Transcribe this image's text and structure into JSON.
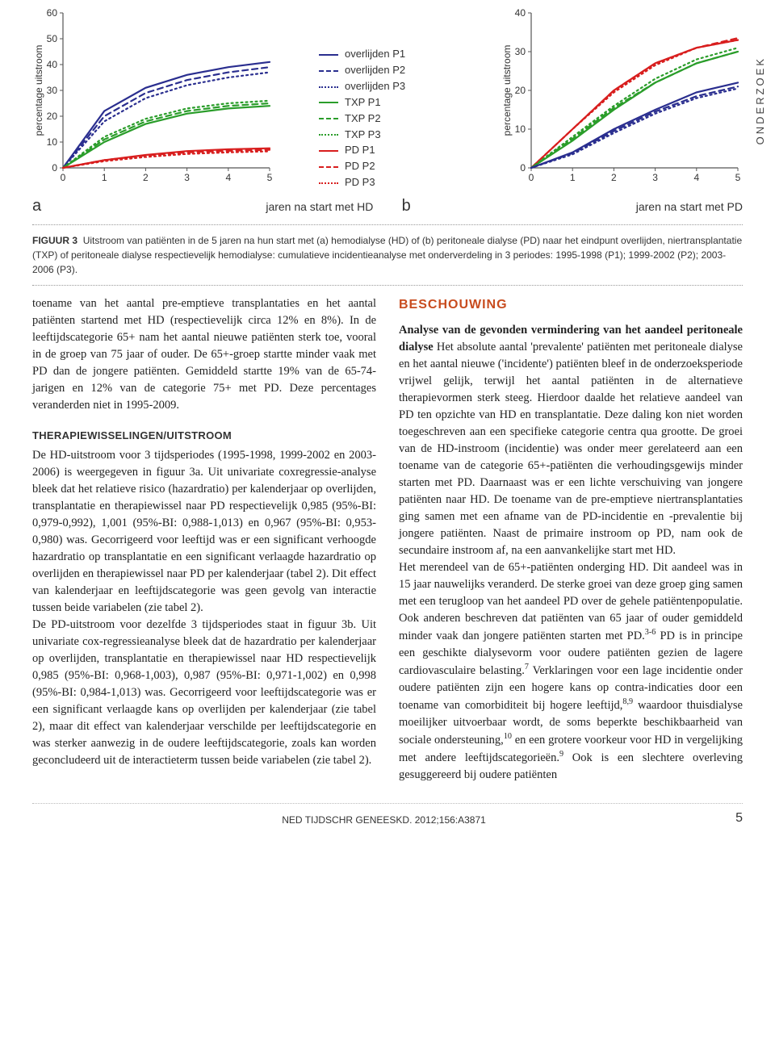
{
  "side_label": "ONDERZOEK",
  "legend": {
    "items": [
      {
        "label": "overlijden P1",
        "color": "#2a2e8f",
        "dash": "solid"
      },
      {
        "label": "overlijden P2",
        "color": "#2a2e8f",
        "dash": "dashed"
      },
      {
        "label": "overlijden P3",
        "color": "#2a2e8f",
        "dash": "dotted"
      },
      {
        "label": "TXP P1",
        "color": "#2a9d2a",
        "dash": "solid"
      },
      {
        "label": "TXP P2",
        "color": "#2a9d2a",
        "dash": "dashed"
      },
      {
        "label": "TXP P3",
        "color": "#2a9d2a",
        "dash": "dotted"
      },
      {
        "label": "PD P1",
        "color": "#d81e1e",
        "dash": "solid"
      },
      {
        "label": "PD P2",
        "color": "#d81e1e",
        "dash": "dashed"
      },
      {
        "label": "PD P3",
        "color": "#d81e1e",
        "dash": "dotted"
      }
    ]
  },
  "chartA": {
    "type": "line",
    "ylabel": "percentage uitstroom",
    "panel_letter": "a",
    "x_caption": "jaren na start met HD",
    "xlim": [
      0,
      5
    ],
    "ylim": [
      0,
      60
    ],
    "xticks": [
      0,
      1,
      2,
      3,
      4,
      5
    ],
    "yticks": [
      0,
      10,
      20,
      30,
      40,
      50,
      60
    ],
    "background_color": "#ffffff",
    "axis_color": "#555555",
    "label_fontsize": 12,
    "series": [
      {
        "name": "overlijden P1",
        "color": "#2a2e8f",
        "dash": "solid",
        "width": 2.2,
        "y": [
          0,
          22,
          31,
          36,
          39,
          41
        ]
      },
      {
        "name": "overlijden P2",
        "color": "#2a2e8f",
        "dash": "dashed",
        "width": 2.2,
        "y": [
          0,
          20,
          29,
          34,
          37,
          39
        ]
      },
      {
        "name": "overlijden P3",
        "color": "#2a2e8f",
        "dash": "dotted",
        "width": 2.2,
        "y": [
          0,
          18,
          27,
          32,
          35,
          37
        ]
      },
      {
        "name": "TXP P1",
        "color": "#2a9d2a",
        "dash": "solid",
        "width": 2.2,
        "y": [
          0,
          10,
          17,
          21,
          23,
          24
        ]
      },
      {
        "name": "TXP P2",
        "color": "#2a9d2a",
        "dash": "dashed",
        "width": 2.2,
        "y": [
          0,
          11,
          18,
          22,
          24,
          25
        ]
      },
      {
        "name": "TXP P3",
        "color": "#2a9d2a",
        "dash": "dotted",
        "width": 2.2,
        "y": [
          0,
          12,
          19,
          23,
          25,
          26
        ]
      },
      {
        "name": "PD P1",
        "color": "#d81e1e",
        "dash": "solid",
        "width": 2.2,
        "y": [
          0,
          3,
          5,
          6.5,
          7.2,
          7.6
        ]
      },
      {
        "name": "PD P2",
        "color": "#d81e1e",
        "dash": "dashed",
        "width": 2.2,
        "y": [
          0,
          3,
          4.8,
          6,
          6.6,
          7
        ]
      },
      {
        "name": "PD P3",
        "color": "#d81e1e",
        "dash": "dotted",
        "width": 2.2,
        "y": [
          0,
          2.6,
          4.2,
          5.4,
          6,
          6.4
        ]
      }
    ]
  },
  "chartB": {
    "type": "line",
    "ylabel": "percentage uitstroom",
    "panel_letter": "b",
    "x_caption": "jaren na start met PD",
    "xlim": [
      0,
      5
    ],
    "ylim": [
      0,
      40
    ],
    "xticks": [
      0,
      1,
      2,
      3,
      4,
      5
    ],
    "yticks": [
      0,
      10,
      20,
      30,
      40
    ],
    "background_color": "#ffffff",
    "axis_color": "#555555",
    "label_fontsize": 12,
    "series": [
      {
        "name": "PD P1",
        "color": "#d81e1e",
        "dash": "solid",
        "width": 2.2,
        "y": [
          0,
          10,
          20,
          27,
          31,
          33
        ]
      },
      {
        "name": "PD P2",
        "color": "#d81e1e",
        "dash": "dashed",
        "width": 2.2,
        "y": [
          0,
          10,
          20,
          27,
          31,
          33.5
        ]
      },
      {
        "name": "PD P3",
        "color": "#d81e1e",
        "dash": "dotted",
        "width": 2.2,
        "y": [
          0,
          10,
          19.5,
          26.5,
          31,
          33
        ]
      },
      {
        "name": "TXP P1",
        "color": "#2a9d2a",
        "dash": "solid",
        "width": 2.2,
        "y": [
          0,
          7,
          15,
          22,
          27,
          30
        ]
      },
      {
        "name": "TXP P2",
        "color": "#2a9d2a",
        "dash": "dashed",
        "width": 2.2,
        "y": [
          0,
          7.5,
          15.5,
          22,
          27,
          30
        ]
      },
      {
        "name": "TXP P3",
        "color": "#2a9d2a",
        "dash": "dotted",
        "width": 2.2,
        "y": [
          0,
          8,
          16,
          23,
          28,
          31
        ]
      },
      {
        "name": "overlijden P1",
        "color": "#2a2e8f",
        "dash": "solid",
        "width": 2.2,
        "y": [
          0,
          4,
          10,
          15,
          19.5,
          22
        ]
      },
      {
        "name": "overlijden P2",
        "color": "#2a2e8f",
        "dash": "dashed",
        "width": 2.2,
        "y": [
          0,
          3.8,
          9.5,
          14.5,
          18.5,
          21
        ]
      },
      {
        "name": "overlijden P3",
        "color": "#2a2e8f",
        "dash": "dotted",
        "width": 2.2,
        "y": [
          0,
          3.5,
          9,
          14,
          18,
          20.5
        ]
      }
    ]
  },
  "figure": {
    "label": "FIGUUR 3",
    "caption": "Uitstroom van patiënten in de 5 jaren na hun start met (a) hemodialyse (HD) of (b) peritoneale dialyse (PD) naar het eindpunt overlijden, niertransplantatie (TXP) of peritoneale dialyse respectievelijk hemodialyse: cumulatieve incidentieanalyse met onderverdeling in 3 periodes: 1995-1998 (P1); 1999-2002 (P2); 2003-2006 (P3)."
  },
  "body": {
    "para1": "toename van het aantal pre-emptieve transplantaties en het aantal patiënten startend met HD (respectievelijk circa 12% en 8%). In de leeftijdscategorie 65+ nam het aantal nieuwe patiënten sterk toe, vooral in de groep van 75 jaar of ouder. De 65+-groep startte minder vaak met PD dan de jongere patiënten. Gemiddeld startte 19% van de 65-74-jarigen en 12% van de categorie 75+ met PD. Deze percentages veranderden niet in 1995-2009.",
    "heading1": "THERAPIEWISSELINGEN/UITSTROOM",
    "para2": "De HD-uitstroom voor 3 tijdsperiodes (1995-1998, 1999-2002 en 2003-2006) is weergegeven in figuur 3a. Uit univariate coxregressie-analyse bleek dat het relatieve risico (hazardratio) per kalenderjaar op overlijden, transplantatie en therapiewissel naar PD respectievelijk 0,985 (95%-BI: 0,979-0,992), 1,001 (95%-BI: 0,988-1,013) en 0,967 (95%-BI: 0,953-0,980) was. Gecorrigeerd voor leeftijd was er een significant verhoogde hazardratio op transplantatie en een significant verlaagde hazardratio op overlijden en therapiewissel naar PD per kalenderjaar (tabel 2). Dit effect van kalenderjaar en leeftijdscategorie was geen gevolg van interactie tussen beide variabelen (zie tabel 2).",
    "para3": "De PD-uitstroom voor dezelfde 3 tijdsperiodes staat in figuur 3b. Uit univariate cox-regressieanalyse bleek dat de hazardratio per kalenderjaar op overlijden, transplantatie en therapiewissel naar HD respectievelijk 0,985 (95%-BI: 0,968-1,003), 0,987 (95%-BI: 0,971-1,002) en 0,998 (95%-BI: 0,984-1,013) was. Gecorrigeerd voor leeftijdscategorie was er een significant verlaagde kans op overlijden per kalenderjaar (zie tabel 2), maar dit effect van kalenderjaar verschilde per leeftijdscategorie en was sterker aanwezig in de oudere leeftijdscategorie, zoals kan worden geconcludeerd uit de interactieterm tussen beide variabelen (zie tabel 2).",
    "heading2": "BESCHOUWING",
    "runin1": "Analyse van de gevonden vermindering van het aandeel peritoneale dialyse",
    "para4": " Het absolute aantal 'prevalente' patiënten met peritoneale dialyse en het aantal nieuwe ('incidente') patiënten bleef in de onderzoeksperiode vrijwel gelijk, terwijl het aantal patiënten in de alternatieve therapievormen sterk steeg. Hierdoor daalde het relatieve aandeel van PD ten opzichte van HD en transplantatie. Deze daling kon niet worden toegeschreven aan een specifieke categorie centra qua grootte. De groei van de HD-instroom (incidentie) was onder meer gerelateerd aan een toename van de categorie 65+-patiënten die verhoudingsgewijs minder starten met PD. Daarnaast was er een lichte verschuiving van jongere patiënten naar HD. De toename van de pre-emptieve niertransplantaties ging samen met een afname van de PD-incidentie en -prevalentie bij jongere patiënten. Naast de primaire instroom op PD, nam ook de secundaire instroom af, na een aanvankelijke start met HD.",
    "para5a": "Het merendeel van de 65+-patiënten onderging HD. Dit aandeel was in 15 jaar nauwelijks veranderd. De sterke groei van deze groep ging samen met een terugloop van het aandeel PD over de gehele patiëntenpopulatie. Ook anderen beschreven dat patiënten van 65 jaar of ouder gemiddeld minder vaak dan jongere patiënten starten met PD.",
    "ref1": "3-6",
    "para5b": " PD is in principe een geschikte dialysevorm voor oudere patiënten gezien de lagere cardiovasculaire belasting.",
    "ref2": "7",
    "para5c": " Verklaringen voor een lage incidentie onder oudere patiënten zijn een hogere kans op contra-indicaties door een toename van comorbiditeit bij hogere leeftijd,",
    "ref3": "8,9",
    "para5d": " waardoor thuisdialyse moeilijker uitvoerbaar wordt, de soms beperkte beschikbaarheid van sociale ondersteuning,",
    "ref4": "10",
    "para5e": " en een grotere voorkeur voor HD in vergelijking met andere leeftijdscategorieën.",
    "ref5": "9",
    "para5f": " Ook is een slechtere overleving gesuggereerd bij oudere patiënten"
  },
  "footer": {
    "journal": "NED TIJDSCHR GENEESKD. 2012;156:A3871",
    "page": "5"
  }
}
